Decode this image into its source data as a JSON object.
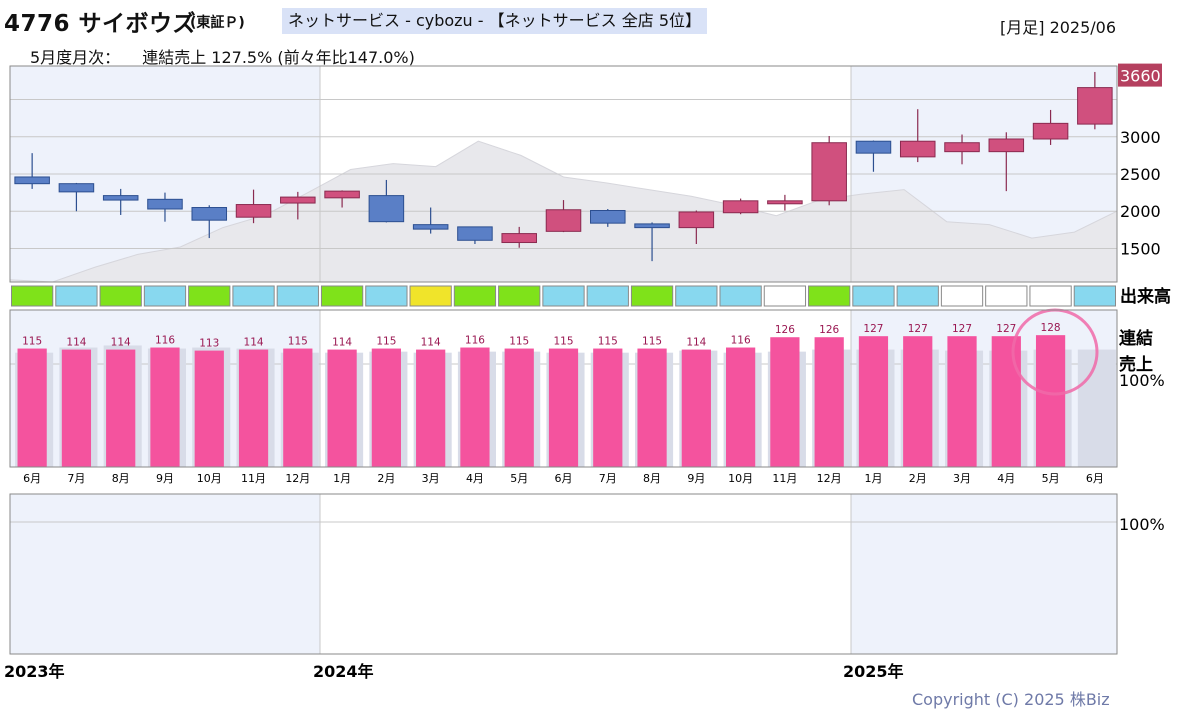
{
  "header": {
    "code_name": "4776 サイボウズ",
    "exchange": "(東証Ｐ)",
    "sector": "ネットサービス - cybozu - 【ネットサービス 全店 5位】",
    "period": "[月足] 2025/06",
    "monthly_label": "5月度月次：",
    "monthly_value": "連結売上 127.5% (前々年比147.0%)"
  },
  "labels": {
    "volume": "出来高",
    "sales_line1": "連結",
    "sales_line2": "売上",
    "pct100_top": "100%",
    "pct100_bottom": "100%",
    "last_price": "3660"
  },
  "colors": {
    "up": "#d0507e",
    "down": "#5a7fc6",
    "bar": "#f4539e",
    "bar_prev": "#d8dce8",
    "shade": "#eef2fb",
    "area": "#e8e8ec",
    "highlight_circle": "#f06aa8"
  },
  "copyright": "Copyright (C) 2025 株Biz",
  "chart_data": [
    {
      "type": "candlestick",
      "title": "4776 サイボウズ 月足",
      "x": [
        "2023/06",
        "2023/07",
        "2023/08",
        "2023/09",
        "2023/10",
        "2023/11",
        "2023/12",
        "2024/01",
        "2024/02",
        "2024/03",
        "2024/04",
        "2024/05",
        "2024/06",
        "2024/07",
        "2024/08",
        "2024/09",
        "2024/10",
        "2024/11",
        "2024/12",
        "2025/01",
        "2025/02",
        "2025/03",
        "2025/04",
        "2025/05",
        "2025/06"
      ],
      "open": [
        2460,
        2370,
        2210,
        2160,
        2050,
        1920,
        2110,
        2180,
        2210,
        1820,
        1790,
        1580,
        1730,
        2010,
        1830,
        1780,
        1980,
        2100,
        2140,
        2940,
        2730,
        2800,
        2800,
        2970,
        3170
      ],
      "high": [
        2780,
        2380,
        2300,
        2250,
        2080,
        2290,
        2260,
        2280,
        2420,
        2050,
        1790,
        1790,
        2150,
        2030,
        1850,
        2010,
        2170,
        2220,
        3010,
        2950,
        3370,
        3030,
        3060,
        3360,
        3870
      ],
      "low": [
        2300,
        2000,
        1950,
        1860,
        1640,
        1840,
        1890,
        2050,
        1850,
        1700,
        1560,
        1510,
        1720,
        1790,
        1330,
        1560,
        1960,
        2010,
        2080,
        2530,
        2660,
        2630,
        2270,
        2890,
        3100
      ],
      "close": [
        2370,
        2260,
        2150,
        2030,
        1880,
        2090,
        2190,
        2270,
        1860,
        1760,
        1610,
        1700,
        2020,
        1840,
        1780,
        1990,
        2140,
        2140,
        2920,
        2780,
        2940,
        2920,
        2970,
        3180,
        3660
      ],
      "yticks": [
        1500,
        2000,
        2500,
        3000
      ],
      "ylim": [
        1050,
        3950
      ],
      "moving_average_area": [
        1080,
        1050,
        1250,
        1420,
        1520,
        1780,
        1950,
        2250,
        2560,
        2640,
        2600,
        2940,
        2750,
        2460,
        2380,
        2290,
        2200,
        2080,
        1940,
        2150,
        2230,
        2290,
        1860,
        1820,
        1640,
        1720,
        2000
      ]
    },
    {
      "type": "indicator-strip",
      "title": "出来高",
      "values": [
        "green",
        "cyan",
        "green",
        "cyan",
        "green",
        "cyan",
        "cyan",
        "green",
        "cyan",
        "yellow",
        "green",
        "green",
        "cyan",
        "cyan",
        "green",
        "cyan",
        "cyan",
        "white",
        "green",
        "cyan",
        "cyan",
        "white",
        "white",
        "white",
        "cyan"
      ]
    },
    {
      "type": "bar",
      "title": "連結売上",
      "categories": [
        "6月",
        "7月",
        "8月",
        "9月",
        "10月",
        "11月",
        "12月",
        "1月",
        "2月",
        "3月",
        "4月",
        "5月",
        "6月",
        "7月",
        "8月",
        "9月",
        "10月",
        "11月",
        "12月",
        "1月",
        "2月",
        "3月",
        "4月",
        "5月",
        "6月"
      ],
      "values": [
        115,
        114,
        114,
        116,
        113,
        114,
        115,
        114,
        115,
        114,
        116,
        115,
        115,
        115,
        115,
        114,
        116,
        126,
        126,
        127,
        127,
        127,
        127,
        128,
        null
      ],
      "series_prev": [
        111,
        116,
        118,
        115,
        116,
        115,
        111,
        111,
        112,
        111,
        112,
        112,
        111,
        111,
        111,
        113,
        111,
        112,
        114,
        114,
        114,
        113,
        113,
        114,
        114
      ],
      "reference": 100
    }
  ],
  "x_axis": {
    "years": [
      "2023年",
      "2024年",
      "2025年"
    ]
  }
}
